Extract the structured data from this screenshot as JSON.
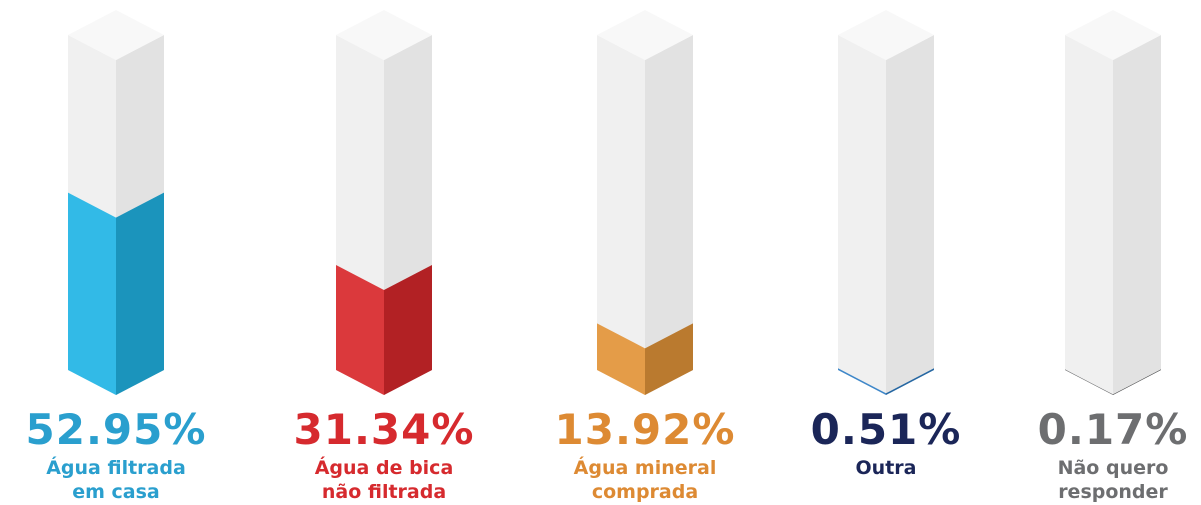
{
  "chart_data": {
    "type": "bar",
    "categories": [
      "Água filtrada em casa",
      "Água de bica não filtrada",
      "Água mineral comprada",
      "Outra",
      "Não quero responder"
    ],
    "values": [
      52.95,
      31.34,
      13.92,
      0.51,
      0.17
    ],
    "value_labels": [
      "52.95%",
      "31.34%",
      "13.92%",
      "0.51%",
      "0.17%"
    ],
    "colors": [
      "#22b5e6",
      "#d9292d",
      "#e3953a",
      "#2f7ec6",
      "#5a5b5d"
    ],
    "ylim": [
      0,
      100
    ]
  }
}
